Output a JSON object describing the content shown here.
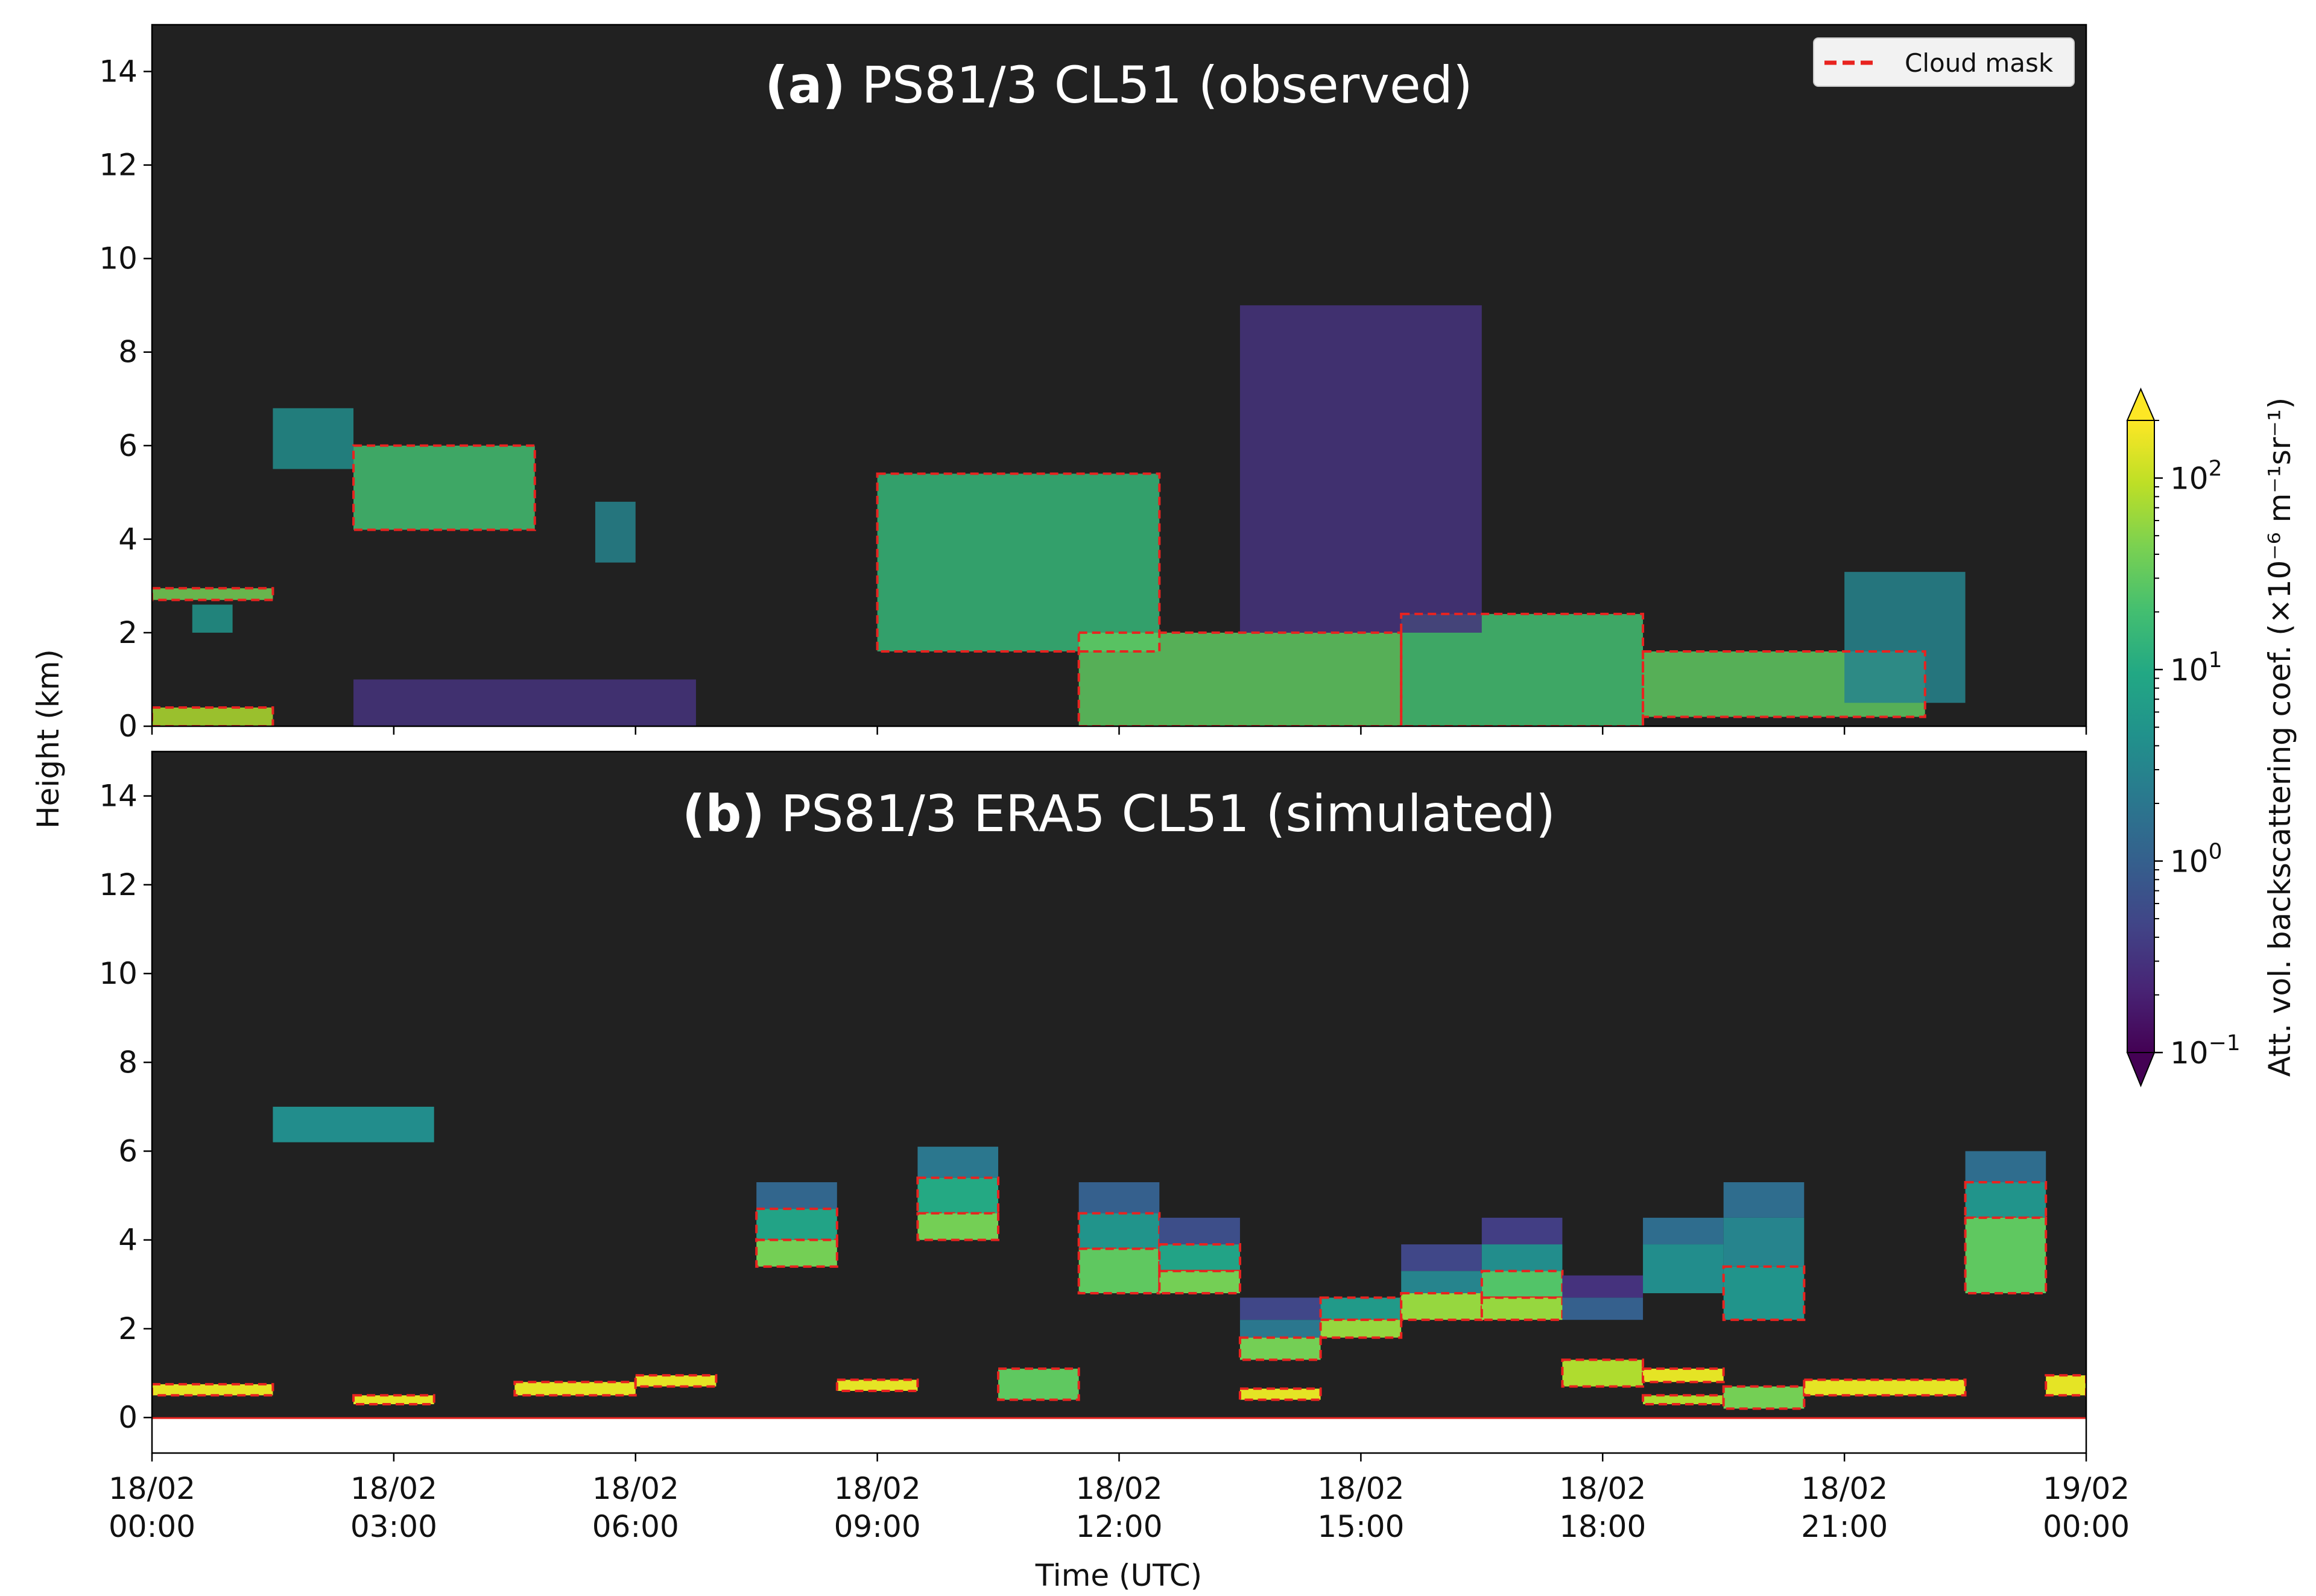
{
  "panels": [
    {
      "label": "(a)",
      "title": "PS81/3 CL51 (observed)"
    },
    {
      "label": "(b)",
      "title": "PS81/3 ERA5 CL51 (simulated)"
    }
  ],
  "legend": {
    "label": "Cloud mask",
    "color": "#e8231f"
  },
  "colorbar": {
    "label": "Att. vol. backscattering coef. (×10⁻⁶ m⁻¹sr⁻¹)",
    "scale": "log",
    "colormap": "viridis",
    "range": [
      0.1,
      200
    ],
    "ticks": [
      {
        "value": 0.1,
        "base": "10",
        "exp": "−1"
      },
      {
        "value": 1,
        "base": "10",
        "exp": "0"
      },
      {
        "value": 10,
        "base": "10",
        "exp": "1"
      },
      {
        "value": 100,
        "base": "10",
        "exp": "2"
      }
    ]
  },
  "axes": {
    "ylabel": "Height (km)",
    "xlabel": "Time (UTC)",
    "yticks": [
      "0",
      "2",
      "4",
      "6",
      "8",
      "10",
      "12",
      "14"
    ],
    "xticks": [
      {
        "d": "18/02",
        "t": "00:00"
      },
      {
        "d": "18/02",
        "t": "03:00"
      },
      {
        "d": "18/02",
        "t": "06:00"
      },
      {
        "d": "18/02",
        "t": "09:00"
      },
      {
        "d": "18/02",
        "t": "12:00"
      },
      {
        "d": "18/02",
        "t": "15:00"
      },
      {
        "d": "18/02",
        "t": "18:00"
      },
      {
        "d": "18/02",
        "t": "21:00"
      },
      {
        "d": "19/02",
        "t": "00:00"
      }
    ]
  },
  "colors": {
    "background": "#212121",
    "mask": "#e8231f"
  },
  "chart_data": [
    {
      "type": "heatmap",
      "panel": "a",
      "title": "PS81/3 CL51 (observed)",
      "xlabel": "Time (UTC)",
      "ylabel": "Height (km)",
      "xlim": [
        "18/02 00:00",
        "19/02 00:00"
      ],
      "ylim": [
        0,
        15
      ],
      "regions": [
        {
          "t0": "00:00",
          "t1": "01:30",
          "h0": 0.0,
          "h1": 0.4,
          "value": 80
        },
        {
          "t0": "00:30",
          "t1": "01:00",
          "h0": 2.0,
          "h1": 2.6,
          "value": 5
        },
        {
          "t0": "00:00",
          "t1": "01:30",
          "h0": 2.7,
          "h1": 2.95,
          "value": 40
        },
        {
          "t0": "01:30",
          "t1": "02:30",
          "h0": 5.5,
          "h1": 6.8,
          "value": 4
        },
        {
          "t0": "02:30",
          "t1": "04:45",
          "h0": 4.2,
          "h1": 6.0,
          "value": 20
        },
        {
          "t0": "05:30",
          "t1": "06:00",
          "h0": 3.5,
          "h1": 4.8,
          "value": 3
        },
        {
          "t0": "09:00",
          "t1": "12:30",
          "h0": 1.6,
          "h1": 5.4,
          "value": 15
        },
        {
          "t0": "11:30",
          "t1": "15:30",
          "h0": 0.0,
          "h1": 2.0,
          "value": 30
        },
        {
          "t0": "15:30",
          "t1": "18:30",
          "h0": 0.0,
          "h1": 2.4,
          "value": 20
        },
        {
          "t0": "18:30",
          "t1": "22:00",
          "h0": 0.2,
          "h1": 1.6,
          "value": 30
        },
        {
          "t0": "21:00",
          "t1": "22:30",
          "h0": 0.5,
          "h1": 3.3,
          "value": 3
        },
        {
          "t0": "13:30",
          "t1": "16:30",
          "h0": 2.0,
          "h1": 9.0,
          "value": 0.3
        },
        {
          "t0": "02:30",
          "t1": "06:45",
          "h0": 0.0,
          "h1": 1.0,
          "value": 0.3
        }
      ]
    },
    {
      "type": "heatmap",
      "panel": "b",
      "title": "PS81/3 ERA5 CL51 (simulated)",
      "xlabel": "Time (UTC)",
      "ylabel": "Height (km)",
      "xlim": [
        "18/02 00:00",
        "19/02 00:00"
      ],
      "ylim": [
        -0.8,
        15
      ],
      "cells": [
        {
          "t0": "00:00",
          "t1": "01:30",
          "h0": 0.5,
          "h1": 0.75,
          "value": 150
        },
        {
          "t0": "01:30",
          "t1": "03:30",
          "h0": 6.2,
          "h1": 7.0,
          "value": 4
        },
        {
          "t0": "02:30",
          "t1": "03:30",
          "h0": 0.3,
          "h1": 0.5,
          "value": 150
        },
        {
          "t0": "04:30",
          "t1": "06:00",
          "h0": 0.5,
          "h1": 0.8,
          "value": 150
        },
        {
          "t0": "06:00",
          "t1": "07:00",
          "h0": 0.7,
          "h1": 0.95,
          "value": 150
        },
        {
          "t0": "07:30",
          "t1": "08:30",
          "h0": 4.7,
          "h1": 5.3,
          "value": 1.2
        },
        {
          "t0": "07:30",
          "t1": "08:30",
          "h0": 4.0,
          "h1": 4.7,
          "value": 8
        },
        {
          "t0": "07:30",
          "t1": "08:30",
          "h0": 3.4,
          "h1": 4.0,
          "value": 40
        },
        {
          "t0": "08:30",
          "t1": "09:30",
          "h0": 0.6,
          "h1": 0.85,
          "value": 150
        },
        {
          "t0": "09:30",
          "t1": "10:30",
          "h0": 5.4,
          "h1": 6.1,
          "value": 2
        },
        {
          "t0": "09:30",
          "t1": "10:30",
          "h0": 4.6,
          "h1": 5.4,
          "value": 10
        },
        {
          "t0": "09:30",
          "t1": "10:30",
          "h0": 4.0,
          "h1": 4.6,
          "value": 40
        },
        {
          "t0": "10:30",
          "t1": "11:30",
          "h0": 0.4,
          "h1": 1.1,
          "value": 30
        },
        {
          "t0": "11:30",
          "t1": "12:30",
          "h0": 4.6,
          "h1": 5.3,
          "value": 1
        },
        {
          "t0": "11:30",
          "t1": "12:30",
          "h0": 3.8,
          "h1": 4.6,
          "value": 5
        },
        {
          "t0": "11:30",
          "t1": "12:30",
          "h0": 2.8,
          "h1": 3.8,
          "value": 30
        },
        {
          "t0": "12:30",
          "t1": "13:30",
          "h0": 3.9,
          "h1": 4.5,
          "value": 0.6
        },
        {
          "t0": "12:30",
          "t1": "13:30",
          "h0": 3.3,
          "h1": 3.9,
          "value": 8
        },
        {
          "t0": "12:30",
          "t1": "13:30",
          "h0": 2.8,
          "h1": 3.3,
          "value": 40
        },
        {
          "t0": "13:30",
          "t1": "14:30",
          "h0": 2.2,
          "h1": 2.7,
          "value": 0.5
        },
        {
          "t0": "13:30",
          "t1": "14:30",
          "h0": 1.8,
          "h1": 2.2,
          "value": 2
        },
        {
          "t0": "13:30",
          "t1": "14:30",
          "h0": 1.3,
          "h1": 1.8,
          "value": 40
        },
        {
          "t0": "13:30",
          "t1": "14:30",
          "h0": 0.4,
          "h1": 0.65,
          "value": 150
        },
        {
          "t0": "14:30",
          "t1": "15:30",
          "h0": 2.2,
          "h1": 2.7,
          "value": 6
        },
        {
          "t0": "14:30",
          "t1": "15:30",
          "h0": 1.8,
          "h1": 2.2,
          "value": 60
        },
        {
          "t0": "15:30",
          "t1": "16:30",
          "h0": 3.3,
          "h1": 3.9,
          "value": 0.5
        },
        {
          "t0": "15:30",
          "t1": "16:30",
          "h0": 2.8,
          "h1": 3.3,
          "value": 3
        },
        {
          "t0": "15:30",
          "t1": "16:30",
          "h0": 2.2,
          "h1": 2.8,
          "value": 60
        },
        {
          "t0": "16:30",
          "t1": "17:30",
          "h0": 3.9,
          "h1": 4.5,
          "value": 0.4
        },
        {
          "t0": "16:30",
          "t1": "17:30",
          "h0": 3.3,
          "h1": 3.9,
          "value": 4
        },
        {
          "t0": "16:30",
          "t1": "17:30",
          "h0": 2.7,
          "h1": 3.3,
          "value": 25
        },
        {
          "t0": "16:30",
          "t1": "17:30",
          "h0": 2.2,
          "h1": 2.7,
          "value": 60
        },
        {
          "t0": "17:30",
          "t1": "18:30",
          "h0": 2.7,
          "h1": 3.2,
          "value": 0.3
        },
        {
          "t0": "17:30",
          "t1": "18:30",
          "h0": 2.2,
          "h1": 2.7,
          "value": 1
        },
        {
          "t0": "17:30",
          "t1": "18:30",
          "h0": 0.7,
          "h1": 1.3,
          "value": 80
        },
        {
          "t0": "18:30",
          "t1": "19:30",
          "h0": 3.9,
          "h1": 4.5,
          "value": 1.5
        },
        {
          "t0": "18:30",
          "t1": "19:30",
          "h0": 2.8,
          "h1": 3.9,
          "value": 4
        },
        {
          "t0": "18:30",
          "t1": "19:30",
          "h0": 0.8,
          "h1": 1.1,
          "value": 150
        },
        {
          "t0": "18:30",
          "t1": "19:30",
          "h0": 0.3,
          "h1": 0.5,
          "value": 80
        },
        {
          "t0": "19:30",
          "t1": "20:30",
          "h0": 4.5,
          "h1": 5.3,
          "value": 1.5
        },
        {
          "t0": "19:30",
          "t1": "20:30",
          "h0": 3.4,
          "h1": 4.5,
          "value": 3
        },
        {
          "t0": "19:30",
          "t1": "20:30",
          "h0": 2.2,
          "h1": 3.4,
          "value": 5
        },
        {
          "t0": "19:30",
          "t1": "20:30",
          "h0": 0.2,
          "h1": 0.7,
          "value": 40
        },
        {
          "t0": "20:30",
          "t1": "22:30",
          "h0": 0.5,
          "h1": 0.85,
          "value": 150
        },
        {
          "t0": "22:30",
          "t1": "23:30",
          "h0": 5.3,
          "h1": 6.0,
          "value": 1.5
        },
        {
          "t0": "22:30",
          "t1": "23:30",
          "h0": 4.5,
          "h1": 5.3,
          "value": 5
        },
        {
          "t0": "22:30",
          "t1": "23:30",
          "h0": 2.8,
          "h1": 4.5,
          "value": 30
        },
        {
          "t0": "23:30",
          "t1": "24:00",
          "h0": 0.5,
          "h1": 0.95,
          "value": 150
        }
      ]
    }
  ]
}
